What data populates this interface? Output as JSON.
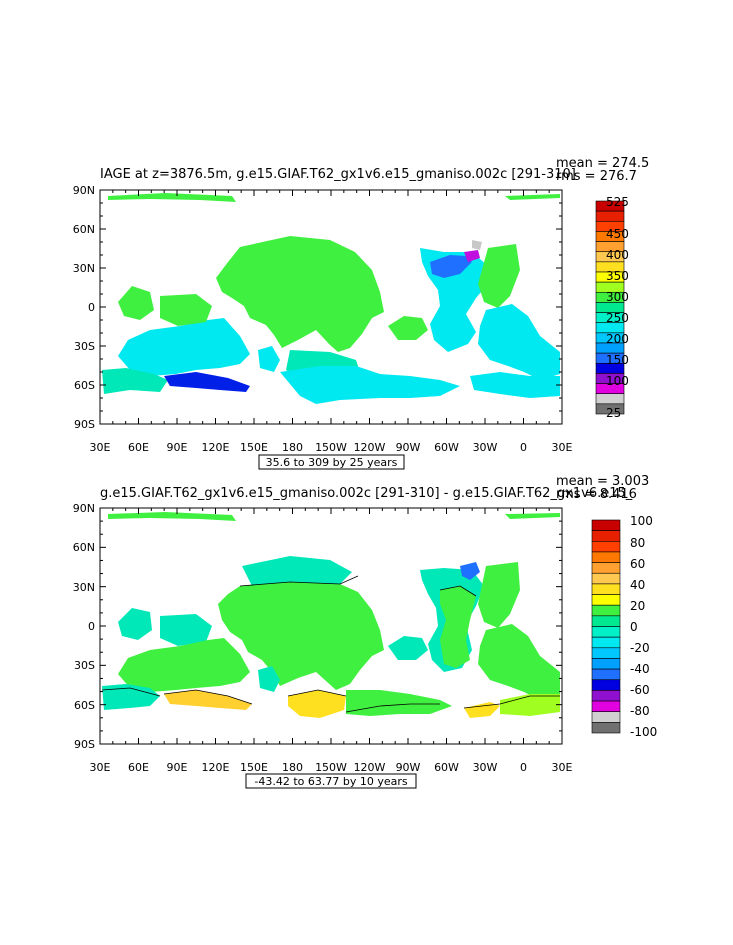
{
  "chart_data": [
    {
      "type": "heatmap",
      "title": "IAGE at z=3876.5m, g.e15.GIAF.T62_gx1v6.e15_gmaniso.002c [291-310]",
      "stats": [
        "mean = 274.5",
        "rms = 276.7"
      ],
      "range_note": "35.6 to 309 by 25 years",
      "x_ticks": [
        "30E",
        "60E",
        "90E",
        "120E",
        "150E",
        "180",
        "150W",
        "120W",
        "90W",
        "60W",
        "30W",
        "0",
        "30E"
      ],
      "y_ticks": [
        "90N",
        "60N",
        "30N",
        "0",
        "30S",
        "60S",
        "90S"
      ],
      "colorbar": {
        "labels": [
          "525",
          "450",
          "400",
          "350",
          "300",
          "250",
          "200",
          "150",
          "100",
          "25"
        ],
        "colors": [
          "#c80000",
          "#e62000",
          "#ff4000",
          "#ff7800",
          "#ffa030",
          "#ffc850",
          "#ffe020",
          "#ffff00",
          "#a0ff20",
          "#40f040",
          "#00e890",
          "#00f0c8",
          "#00e8f0",
          "#00c8ff",
          "#00a0ff",
          "#2070ff",
          "#0000e0",
          "#9010d0",
          "#e000e0",
          "#d0d0d0",
          "#707070"
        ]
      }
    },
    {
      "type": "heatmap",
      "title": "g.e15.GIAF.T62_gx1v6.e15_gmaniso.002c [291-310] - g.e15.GIAF.T62_gx1v6.e15_",
      "stats": [
        "mean = 3.003",
        "rms = 8.416"
      ],
      "range_note": "-43.42 to 63.77 by 10 years",
      "x_ticks": [
        "30E",
        "60E",
        "90E",
        "120E",
        "150E",
        "180",
        "150W",
        "120W",
        "90W",
        "60W",
        "30W",
        "0",
        "30E"
      ],
      "y_ticks": [
        "90N",
        "60N",
        "30N",
        "0",
        "30S",
        "60S",
        "90S"
      ],
      "colorbar": {
        "labels": [
          "100",
          "80",
          "60",
          "40",
          "20",
          "0",
          "-20",
          "-40",
          "-60",
          "-80",
          "-100"
        ],
        "colors": [
          "#c80000",
          "#e62000",
          "#ff4000",
          "#ff7800",
          "#ffa030",
          "#ffc850",
          "#ffe020",
          "#ffff00",
          "#40f040",
          "#00e890",
          "#00f0c8",
          "#00e8f0",
          "#00c8ff",
          "#00a0ff",
          "#2070ff",
          "#0000e0",
          "#9010d0",
          "#e000e0",
          "#d0d0d0",
          "#707070"
        ]
      }
    }
  ]
}
